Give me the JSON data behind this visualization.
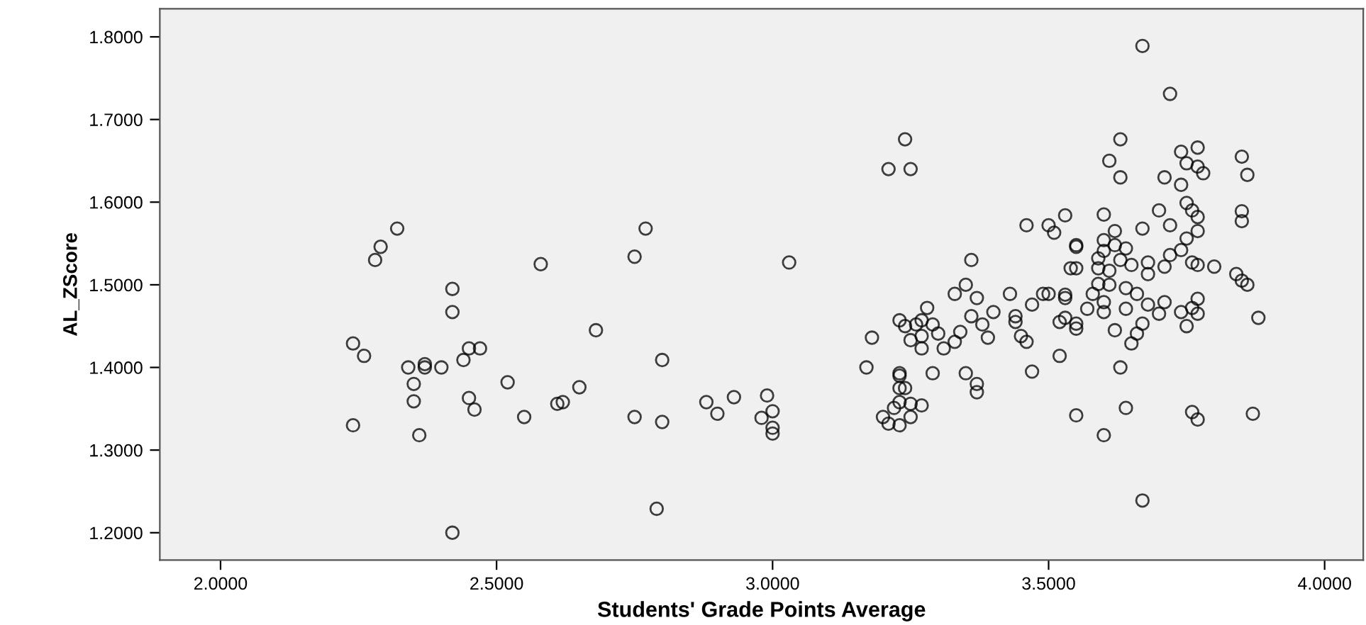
{
  "chart_data": {
    "type": "scatter",
    "xlabel": "Students' Grade Points Average",
    "ylabel": "AL_ZScore",
    "xlim": [
      1.89,
      4.07
    ],
    "ylim": [
      1.167,
      1.834
    ],
    "xticks": [
      {
        "value": 2.0,
        "label": "2.0000"
      },
      {
        "value": 2.5,
        "label": "2.5000"
      },
      {
        "value": 3.0,
        "label": "3.0000"
      },
      {
        "value": 3.5,
        "label": "3.5000"
      },
      {
        "value": 4.0,
        "label": "4.0000"
      }
    ],
    "yticks": [
      {
        "value": 1.2,
        "label": "1.2000"
      },
      {
        "value": 1.3,
        "label": "1.3000"
      },
      {
        "value": 1.4,
        "label": "1.4000"
      },
      {
        "value": 1.5,
        "label": "1.5000"
      },
      {
        "value": 1.6,
        "label": "1.6000"
      },
      {
        "value": 1.7,
        "label": "1.7000"
      },
      {
        "value": 1.8,
        "label": "1.8000"
      }
    ],
    "grid": false,
    "marker": "circle",
    "series": [
      {
        "color": "#000000",
        "x": [
          2.32,
          2.29,
          2.28,
          2.42,
          2.42,
          2.24,
          2.26,
          2.34,
          2.37,
          2.37,
          2.4,
          2.35,
          2.35,
          2.36,
          2.24,
          2.45,
          2.47,
          2.44,
          2.45,
          2.46,
          2.42,
          2.52,
          2.58,
          2.55,
          2.61,
          2.62,
          2.65,
          2.68,
          2.77,
          2.75,
          2.8,
          2.75,
          2.8,
          2.79,
          2.88,
          3.03,
          2.9,
          2.93,
          2.99,
          3.0,
          2.98,
          3.0,
          3.0,
          3.18,
          3.17,
          3.23,
          3.23,
          3.24,
          3.23,
          3.23,
          3.25,
          3.27,
          3.22,
          3.2,
          3.25,
          3.21,
          3.23,
          3.29,
          3.35,
          3.37,
          3.37,
          3.47,
          3.52,
          3.55,
          3.23,
          3.24,
          3.26,
          3.27,
          3.29,
          3.28,
          3.25,
          3.27,
          3.27,
          3.3,
          3.31,
          3.33,
          3.34,
          3.33,
          3.35,
          3.37,
          3.36,
          3.36,
          3.38,
          3.4,
          3.39,
          3.43,
          3.47,
          3.44,
          3.44,
          3.45,
          3.46,
          3.49,
          3.53,
          3.46,
          3.5,
          3.51,
          3.53,
          3.55,
          3.54,
          3.67,
          3.72,
          3.24,
          3.21,
          3.25,
          3.63,
          3.61,
          3.63,
          3.71,
          3.74,
          3.74,
          3.77,
          3.75,
          3.77,
          3.78,
          3.85,
          3.86,
          3.6,
          3.55,
          3.62,
          3.67,
          3.7,
          3.72,
          3.75,
          3.76,
          3.77,
          3.85,
          3.85,
          3.77,
          3.75,
          3.6,
          3.62,
          3.64,
          3.6,
          3.64,
          3.63,
          3.67,
          3.76,
          3.77,
          3.87,
          3.88,
          3.75,
          3.77,
          3.76,
          3.77,
          3.74,
          3.71,
          3.68,
          3.7,
          3.67,
          3.66,
          3.65,
          3.62,
          3.64,
          3.6,
          3.6,
          3.57,
          3.55,
          3.55,
          3.53,
          3.52,
          3.53,
          3.5,
          3.58,
          3.59,
          3.61,
          3.64,
          3.66,
          3.55,
          3.59,
          3.61,
          3.59,
          3.6,
          3.63,
          3.65,
          3.68,
          3.68,
          3.71,
          3.72,
          3.74,
          3.76,
          3.77,
          3.8,
          3.84,
          3.85,
          3.86
        ],
        "values": [
          1.568,
          1.546,
          1.53,
          1.495,
          1.467,
          1.429,
          1.414,
          1.4,
          1.4,
          1.404,
          1.4,
          1.38,
          1.359,
          1.318,
          1.33,
          1.423,
          1.423,
          1.409,
          1.363,
          1.349,
          1.2,
          1.382,
          1.525,
          1.34,
          1.356,
          1.358,
          1.376,
          1.445,
          1.568,
          1.534,
          1.409,
          1.34,
          1.334,
          1.229,
          1.358,
          1.527,
          1.344,
          1.364,
          1.366,
          1.347,
          1.339,
          1.327,
          1.32,
          1.436,
          1.4,
          1.393,
          1.39,
          1.375,
          1.375,
          1.358,
          1.356,
          1.354,
          1.351,
          1.34,
          1.34,
          1.332,
          1.33,
          1.393,
          1.393,
          1.38,
          1.37,
          1.395,
          1.414,
          1.342,
          1.457,
          1.45,
          1.452,
          1.457,
          1.452,
          1.472,
          1.433,
          1.438,
          1.423,
          1.441,
          1.423,
          1.431,
          1.443,
          1.489,
          1.5,
          1.484,
          1.53,
          1.462,
          1.452,
          1.467,
          1.436,
          1.489,
          1.476,
          1.462,
          1.455,
          1.438,
          1.431,
          1.489,
          1.488,
          1.572,
          1.572,
          1.563,
          1.584,
          1.546,
          1.52,
          1.789,
          1.731,
          1.676,
          1.64,
          1.64,
          1.676,
          1.65,
          1.63,
          1.63,
          1.621,
          1.661,
          1.666,
          1.647,
          1.643,
          1.635,
          1.655,
          1.633,
          1.585,
          1.548,
          1.565,
          1.568,
          1.59,
          1.572,
          1.599,
          1.59,
          1.582,
          1.589,
          1.577,
          1.565,
          1.556,
          1.554,
          1.548,
          1.544,
          1.318,
          1.351,
          1.4,
          1.239,
          1.346,
          1.337,
          1.344,
          1.46,
          1.45,
          1.483,
          1.472,
          1.465,
          1.467,
          1.479,
          1.476,
          1.465,
          1.453,
          1.441,
          1.429,
          1.445,
          1.471,
          1.467,
          1.479,
          1.471,
          1.447,
          1.453,
          1.46,
          1.455,
          1.484,
          1.489,
          1.489,
          1.501,
          1.5,
          1.496,
          1.489,
          1.52,
          1.52,
          1.517,
          1.532,
          1.541,
          1.53,
          1.524,
          1.527,
          1.513,
          1.522,
          1.536,
          1.542,
          1.527,
          1.524,
          1.522,
          1.513,
          1.505,
          1.5
        ]
      }
    ]
  }
}
